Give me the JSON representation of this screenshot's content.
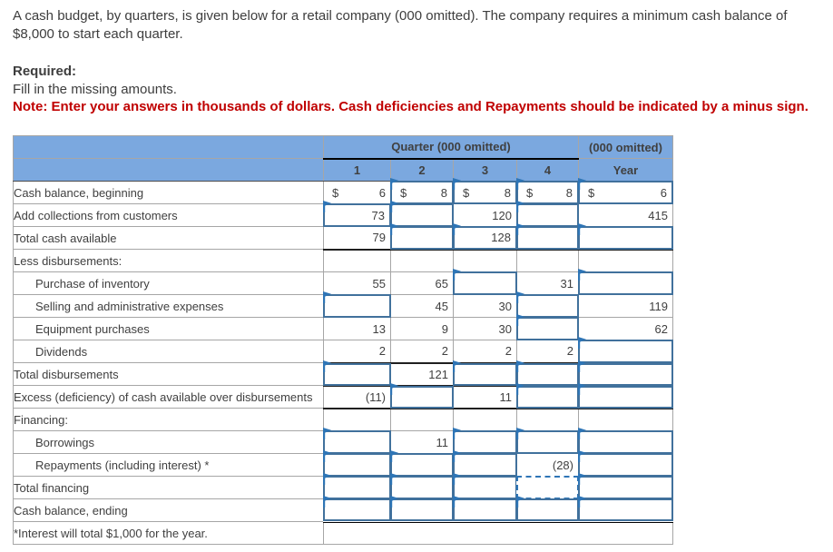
{
  "page": {
    "intro": "A cash budget, by quarters, is given below for a retail company (000 omitted). The company requires a minimum cash balance of $8,000 to start each quarter.",
    "required_label": "Required:",
    "required_text": "Fill in the missing amounts.",
    "note": "Note: Enter your answers in thousands of dollars. Cash deficiencies and Repayments should be indicated by a minus sign."
  },
  "colors": {
    "header_bg": "#7BA8DF",
    "input_border": "#41719C",
    "flag_blue": "#2E75B6",
    "note_red": "#C00000",
    "grid_gray": "#A6A6A6",
    "rule_black": "#1f1f1f"
  },
  "table": {
    "currency_symbol": "$",
    "header": {
      "quarter_group": "Quarter (000 omitted)",
      "year_group": "(000 omitted)",
      "quarters": [
        "1",
        "2",
        "3",
        "4"
      ],
      "year": "Year"
    },
    "rows": [
      {
        "label": "Cash balance, beginning",
        "cells": [
          {
            "t": "given",
            "v": "6",
            "c": true
          },
          {
            "t": "input",
            "v": "8",
            "c": true
          },
          {
            "t": "input",
            "v": "8",
            "c": true
          },
          {
            "t": "input",
            "v": "8",
            "c": true
          },
          {
            "t": "input",
            "v": "6",
            "c": true
          }
        ]
      },
      {
        "label": "Add collections from customers",
        "cells": [
          {
            "t": "input",
            "v": "73"
          },
          {
            "t": "input",
            "v": ""
          },
          {
            "t": "given",
            "v": "120"
          },
          {
            "t": "input",
            "v": ""
          },
          {
            "t": "given",
            "v": "415"
          }
        ]
      },
      {
        "label": "Total cash available",
        "rule": "dark",
        "cells": [
          {
            "t": "given",
            "v": "79"
          },
          {
            "t": "input",
            "v": ""
          },
          {
            "t": "input",
            "v": "128"
          },
          {
            "t": "input",
            "v": ""
          },
          {
            "t": "input",
            "v": ""
          }
        ]
      },
      {
        "label": "Less disbursements:",
        "section": true,
        "cells": [
          {
            "t": "none"
          },
          {
            "t": "none"
          },
          {
            "t": "none"
          },
          {
            "t": "none"
          },
          {
            "t": "none"
          }
        ]
      },
      {
        "label": "Purchase of inventory",
        "indent": true,
        "cells": [
          {
            "t": "given",
            "v": "55"
          },
          {
            "t": "given",
            "v": "65"
          },
          {
            "t": "input",
            "v": ""
          },
          {
            "t": "given",
            "v": "31"
          },
          {
            "t": "input",
            "v": ""
          }
        ]
      },
      {
        "label": "Selling and administrative expenses",
        "indent": true,
        "cells": [
          {
            "t": "input",
            "v": ""
          },
          {
            "t": "given",
            "v": "45"
          },
          {
            "t": "given",
            "v": "30"
          },
          {
            "t": "input",
            "v": ""
          },
          {
            "t": "given",
            "v": "119"
          }
        ]
      },
      {
        "label": "Equipment purchases",
        "indent": true,
        "cells": [
          {
            "t": "given",
            "v": "13"
          },
          {
            "t": "given",
            "v": "9"
          },
          {
            "t": "given",
            "v": "30"
          },
          {
            "t": "input",
            "v": ""
          },
          {
            "t": "given",
            "v": "62"
          }
        ]
      },
      {
        "label": "Dividends",
        "indent": true,
        "rule": "dark",
        "cells": [
          {
            "t": "given",
            "v": "2"
          },
          {
            "t": "given",
            "v": "2"
          },
          {
            "t": "given",
            "v": "2"
          },
          {
            "t": "given",
            "v": "2"
          },
          {
            "t": "input",
            "v": ""
          }
        ]
      },
      {
        "label": "Total disbursements",
        "rule": "dark",
        "cells": [
          {
            "t": "input",
            "v": ""
          },
          {
            "t": "given",
            "v": "121"
          },
          {
            "t": "input",
            "v": ""
          },
          {
            "t": "input",
            "v": ""
          },
          {
            "t": "input",
            "v": ""
          }
        ]
      },
      {
        "label": "Excess (deficiency) of cash available over disbursements",
        "rule": "dark",
        "cells": [
          {
            "t": "given",
            "v": "(11)"
          },
          {
            "t": "input",
            "v": ""
          },
          {
            "t": "given",
            "v": "11"
          },
          {
            "t": "input",
            "v": ""
          },
          {
            "t": "input",
            "v": ""
          }
        ]
      },
      {
        "label": "Financing:",
        "section": true,
        "cells": [
          {
            "t": "none"
          },
          {
            "t": "none"
          },
          {
            "t": "none"
          },
          {
            "t": "none"
          },
          {
            "t": "none"
          }
        ]
      },
      {
        "label": "Borrowings",
        "indent": true,
        "cells": [
          {
            "t": "input",
            "v": ""
          },
          {
            "t": "given",
            "v": "11"
          },
          {
            "t": "input",
            "v": ""
          },
          {
            "t": "input",
            "v": ""
          },
          {
            "t": "input",
            "v": ""
          }
        ]
      },
      {
        "label": "Repayments (including interest) *",
        "indent": true,
        "cells": [
          {
            "t": "input",
            "v": ""
          },
          {
            "t": "input",
            "v": ""
          },
          {
            "t": "input",
            "v": ""
          },
          {
            "t": "given",
            "v": "(28)"
          },
          {
            "t": "input",
            "v": ""
          }
        ]
      },
      {
        "label": "Total financing",
        "cells": [
          {
            "t": "input",
            "v": ""
          },
          {
            "t": "input",
            "v": ""
          },
          {
            "t": "input",
            "v": ""
          },
          {
            "t": "sel",
            "v": ""
          },
          {
            "t": "input",
            "v": ""
          }
        ]
      },
      {
        "label": "Cash balance, ending",
        "rule": "dbl",
        "cells": [
          {
            "t": "input",
            "v": ""
          },
          {
            "t": "input",
            "v": ""
          },
          {
            "t": "input",
            "v": ""
          },
          {
            "t": "input",
            "v": ""
          },
          {
            "t": "input",
            "v": ""
          }
        ]
      },
      {
        "label": "*Interest will total $1,000 for the year.",
        "merged": true
      }
    ]
  }
}
